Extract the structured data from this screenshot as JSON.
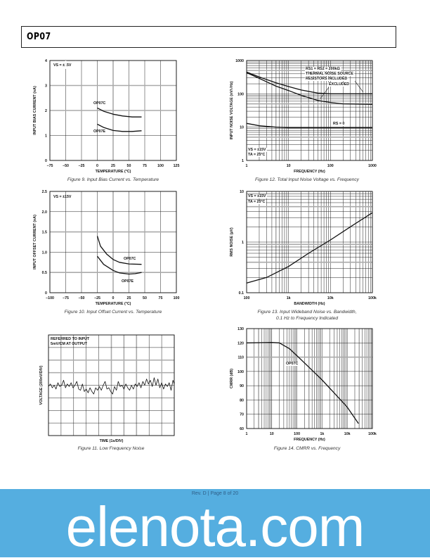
{
  "header": {
    "title": "OP07"
  },
  "footer": {
    "page": "Rev. D | Page 8 of 20",
    "watermark": "elenota.com",
    "color": "#55aee0"
  },
  "chart_data": [
    {
      "figure": "Figure 9. Input Bias Current vs. Temperature",
      "type": "line",
      "xscale": "linear",
      "yscale": "linear",
      "xlim": [
        -75,
        125
      ],
      "ylim": [
        0,
        4
      ],
      "grid": true,
      "xticks": [
        -75,
        -50,
        -25,
        0,
        25,
        50,
        75,
        100,
        125
      ],
      "xticklabels": [
        "−75",
        "−50",
        "−25",
        "0",
        "25",
        "50",
        "75",
        "100",
        "125"
      ],
      "yticks": [
        0,
        1,
        2,
        3,
        4
      ],
      "yticklabels": [
        "0",
        "1",
        "2",
        "3",
        "4"
      ],
      "xlabel": "TEMPERATURE (°C)",
      "ylabel": "INPUT BIAS CURRENT (nA)",
      "annotations": [
        "VS = ±15V",
        "OP07C",
        "OP07E"
      ],
      "series": [
        {
          "name": "OP07C",
          "x": [
            0,
            10,
            25,
            40,
            55,
            70
          ],
          "y": [
            2.1,
            1.97,
            1.85,
            1.78,
            1.74,
            1.74
          ]
        },
        {
          "name": "OP07E",
          "x": [
            0,
            10,
            25,
            40,
            55,
            70
          ],
          "y": [
            1.45,
            1.32,
            1.2,
            1.16,
            1.16,
            1.19
          ]
        }
      ]
    },
    {
      "figure": "Figure 10. Input Offset Current vs. Temperature",
      "type": "line",
      "xscale": "linear",
      "yscale": "linear",
      "xlim": [
        -100,
        100
      ],
      "ylim": [
        0,
        2.5
      ],
      "grid": true,
      "xticks": [
        -100,
        -75,
        -50,
        -25,
        0,
        25,
        50,
        75,
        100
      ],
      "xticklabels": [
        "−100",
        "−75",
        "−50",
        "−25",
        "0",
        "25",
        "50",
        "75",
        "100"
      ],
      "yticks": [
        0,
        0.5,
        1.0,
        1.5,
        2.0,
        2.5
      ],
      "yticklabels": [
        "0",
        "0.5",
        "1.0",
        "1.5",
        "2.0",
        "2.5"
      ],
      "xlabel": "TEMPERATURE (°C)",
      "ylabel": "INPUT OFFSET CURRENT (nA)",
      "annotations": [
        "VS = ±15V",
        "OP07C",
        "OP07E"
      ],
      "series": [
        {
          "name": "OP07C",
          "x": [
            -25,
            -20,
            -10,
            0,
            10,
            25,
            45
          ],
          "y": [
            1.4,
            1.15,
            0.95,
            0.82,
            0.75,
            0.71,
            0.7
          ]
        },
        {
          "name": "OP07E",
          "x": [
            -25,
            -15,
            0,
            10,
            25,
            35,
            45
          ],
          "y": [
            0.9,
            0.7,
            0.55,
            0.49,
            0.46,
            0.47,
            0.5
          ]
        }
      ]
    },
    {
      "figure": "Figure 11. Low Frequency Noise",
      "type": "line",
      "xscale": "linear",
      "yscale": "linear",
      "xlim": [
        0,
        10
      ],
      "ylim": [
        0,
        8
      ],
      "grid": true,
      "xticks": [],
      "xticklabels": [],
      "yticks": [],
      "yticklabels": [],
      "xlabel": "TIME (1s/DIV)",
      "ylabel": "VOLTAGE (200nV/DIV)",
      "annotations": [
        "REFERRED TO INPUT",
        "5mV/CM AT OUTPUT"
      ],
      "series": [
        {
          "x": [
            0,
            0.15,
            0.3,
            0.45,
            0.6,
            0.75,
            0.9,
            1.05,
            1.2,
            1.35,
            1.5,
            1.65,
            1.8,
            1.95,
            2.1,
            2.25,
            2.4,
            2.55,
            2.7,
            2.85,
            3.0,
            3.15,
            3.3,
            3.45,
            3.6,
            3.75,
            3.9,
            4.05,
            4.2,
            4.35,
            4.5,
            4.65,
            4.8,
            4.95,
            5.1,
            5.25,
            5.4,
            5.55,
            5.7,
            5.85,
            6.0,
            6.15,
            6.3,
            6.45,
            6.6,
            6.75,
            6.9,
            7.05,
            7.2,
            7.35,
            7.5,
            7.65,
            7.8,
            7.95,
            8.1,
            8.25,
            8.4,
            8.55,
            8.7,
            8.85,
            9.0,
            9.15,
            9.3,
            9.45,
            9.6,
            9.75,
            9.9,
            10
          ],
          "y": [
            3.9,
            4.1,
            3.8,
            4.0,
            3.7,
            4.2,
            3.9,
            4.0,
            4.4,
            3.8,
            4.1,
            3.9,
            4.2,
            3.8,
            4.0,
            4.3,
            3.7,
            3.6,
            4.1,
            3.5,
            3.7,
            3.4,
            3.8,
            3.5,
            3.3,
            3.8,
            3.6,
            3.9,
            3.6,
            4.0,
            4.3,
            3.7,
            3.8,
            3.5,
            3.3,
            3.9,
            3.6,
            4.3,
            3.9,
            4.0,
            3.7,
            4.1,
            3.8,
            3.6,
            4.0,
            3.7,
            4.1,
            3.9,
            4.2,
            3.8,
            4.3,
            4.0,
            4.5,
            4.1,
            4.4,
            3.9,
            4.6,
            4.0,
            4.5,
            3.8,
            4.2,
            3.7,
            4.1,
            3.9,
            4.2,
            3.6,
            4.4,
            4.1
          ]
        }
      ]
    },
    {
      "figure": "Figure 12. Total Input Noise Voltage vs. Frequency",
      "type": "line",
      "xscale": "log",
      "yscale": "log",
      "xlim": [
        1,
        1000
      ],
      "ylim": [
        1,
        1000
      ],
      "grid": true,
      "xticks": [
        1,
        10,
        100,
        1000
      ],
      "xticklabels": [
        "1",
        "10",
        "100",
        "1000"
      ],
      "yticks": [
        1,
        10,
        100,
        1000
      ],
      "yticklabels": [
        "1",
        "10",
        "100",
        "1000"
      ],
      "xlabel": "FREQUENCY (Hz)",
      "ylabel": "INPUT NOISE VOLTAGE (nV/√Hz)",
      "annotations": [
        "RS1 = RS2 = 200kΩ",
        "THERMAL NOISE SOURCE",
        "RESISTORS INCLUDED",
        "EXCLUDED",
        "RS = 0",
        "VS = ±15V",
        "TA = 25°C"
      ],
      "series": [
        {
          "name": "RESISTORS INCLUDED",
          "x": [
            1,
            2,
            5,
            10,
            20,
            50,
            100,
            1000
          ],
          "y": [
            450,
            320,
            215,
            165,
            130,
            105,
            100,
            100
          ]
        },
        {
          "name": "EXCLUDED",
          "x": [
            1,
            2,
            5,
            10,
            20,
            50,
            100,
            200,
            1000
          ],
          "y": [
            430,
            290,
            170,
            125,
            90,
            63,
            55,
            50,
            48
          ]
        },
        {
          "name": "RS = 0",
          "x": [
            1,
            2,
            5,
            10,
            1000
          ],
          "y": [
            13,
            11,
            10,
            9.6,
            9.6
          ]
        }
      ]
    },
    {
      "figure": "Figure 13. Input Wideband Noise vs. Bandwidth,",
      "figure_line2": "0.1 Hz to Frequency Indicated",
      "type": "line",
      "xscale": "log",
      "yscale": "log",
      "xlim": [
        100,
        100000
      ],
      "ylim": [
        0.1,
        10
      ],
      "grid": true,
      "xticks": [
        100,
        1000,
        10000,
        100000
      ],
      "xticklabels": [
        "100",
        "1k",
        "10k",
        "100k"
      ],
      "yticks": [
        0.1,
        1,
        10
      ],
      "yticklabels": [
        "0.1",
        "1",
        "10"
      ],
      "xlabel": "BANDWIDTH (Hz)",
      "ylabel": "RMS NOISE (µV)",
      "annotations": [
        "VS = ±15V",
        "TA = 25°C"
      ],
      "series": [
        {
          "x": [
            100,
            300,
            1000,
            3000,
            10000,
            30000,
            100000
          ],
          "y": [
            0.155,
            0.2,
            0.33,
            0.6,
            1.1,
            2.0,
            3.8
          ]
        }
      ]
    },
    {
      "figure": "Figure 14. CMRR vs. Frequency",
      "type": "line",
      "xscale": "log",
      "yscale": "linear",
      "xlim": [
        1,
        100000
      ],
      "ylim": [
        60,
        130
      ],
      "grid": true,
      "xticks": [
        1,
        10,
        100,
        1000,
        10000,
        100000
      ],
      "xticklabels": [
        "1",
        "10",
        "100",
        "1k",
        "10k",
        "100k"
      ],
      "yticks": [
        60,
        70,
        80,
        90,
        100,
        110,
        120,
        130
      ],
      "yticklabels": [
        "60",
        "70",
        "80",
        "90",
        "100",
        "110",
        "120",
        "130"
      ],
      "xlabel": "FREQUENCY (Hz)",
      "ylabel": "CMRR (dB)",
      "annotations": [
        "OP07C"
      ],
      "series": [
        {
          "name": "OP07C",
          "x": [
            1,
            10,
            20,
            50,
            100,
            300,
            1000,
            3000,
            10000,
            28000
          ],
          "y": [
            120,
            120.3,
            120,
            116,
            111,
            103,
            94,
            85,
            75,
            63.5
          ]
        }
      ]
    }
  ]
}
